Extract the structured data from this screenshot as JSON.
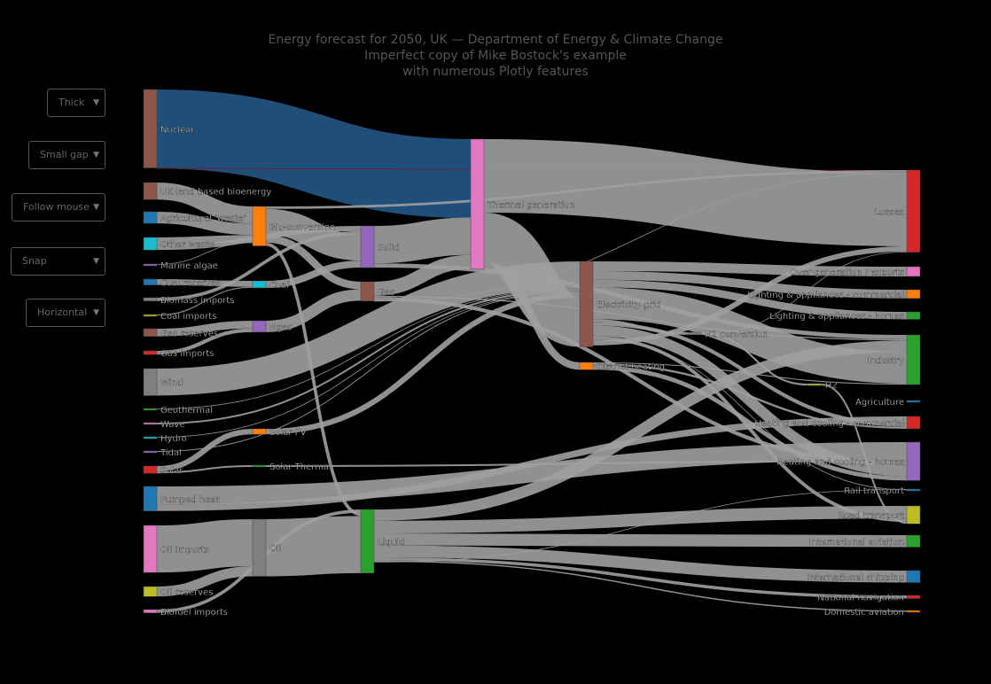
{
  "title": {
    "line1": "Energy forecast for 2050, UK — Department of Energy & Climate Change",
    "line2": "Imperfect copy of Mike Bostock's example",
    "line3": "with numerous Plotly features"
  },
  "controls": [
    {
      "label": "Thick"
    },
    {
      "label": "Small gap"
    },
    {
      "label": "Follow mouse"
    },
    {
      "label": "Snap"
    },
    {
      "label": "Horizontal"
    }
  ],
  "chart_data": {
    "type": "sankey",
    "link_color": "#a0a0a0",
    "nodes": [
      {
        "id": "nuclear",
        "label": "Nuclear",
        "color": "#8c564b"
      },
      {
        "id": "uk_bio",
        "label": "UK land based bioenergy",
        "color": "#8c564b"
      },
      {
        "id": "agri_waste",
        "label": "Agricultural 'waste'",
        "color": "#1f77b4"
      },
      {
        "id": "other_waste",
        "label": "Other waste",
        "color": "#17becf"
      },
      {
        "id": "marine_algae",
        "label": "Marine algae",
        "color": "#9467bd"
      },
      {
        "id": "coal_reserves",
        "label": "Coal reserves",
        "color": "#1f77b4"
      },
      {
        "id": "biomass_imports",
        "label": "Biomass imports",
        "color": "#7f7f7f"
      },
      {
        "id": "coal_imports",
        "label": "Coal imports",
        "color": "#bcbd22"
      },
      {
        "id": "gas_reserves",
        "label": "Gas reserves",
        "color": "#8c564b"
      },
      {
        "id": "gas_imports",
        "label": "Gas imports",
        "color": "#d62728"
      },
      {
        "id": "wind",
        "label": "Wind",
        "color": "#7f7f7f"
      },
      {
        "id": "geothermal",
        "label": "Geothermal",
        "color": "#2ca02c"
      },
      {
        "id": "wave",
        "label": "Wave",
        "color": "#e377c2"
      },
      {
        "id": "hydro",
        "label": "Hydro",
        "color": "#17becf"
      },
      {
        "id": "tidal",
        "label": "Tidal",
        "color": "#9467bd"
      },
      {
        "id": "solar",
        "label": "Solar",
        "color": "#d62728"
      },
      {
        "id": "pumped_heat",
        "label": "Pumped heat",
        "color": "#1f77b4"
      },
      {
        "id": "oil_imports",
        "label": "Oil imports",
        "color": "#e377c2"
      },
      {
        "id": "oil_reserves",
        "label": "Oil reserves",
        "color": "#bcbd22"
      },
      {
        "id": "biofuel_imports",
        "label": "Biofuel imports",
        "color": "#e377c2"
      },
      {
        "id": "bio_conversion",
        "label": "Bio-conversion",
        "color": "#ff7f0e"
      },
      {
        "id": "coal",
        "label": "Coal",
        "color": "#17becf"
      },
      {
        "id": "ngas",
        "label": "Ngas",
        "color": "#9467bd"
      },
      {
        "id": "solar_pv",
        "label": "Solar PV",
        "color": "#ff7f0e"
      },
      {
        "id": "solar_thermal",
        "label": "Solar Thermal",
        "color": "#2ca02c"
      },
      {
        "id": "oil",
        "label": "Oil",
        "color": "#7f7f7f"
      },
      {
        "id": "solid",
        "label": "Solid",
        "color": "#9467bd"
      },
      {
        "id": "gas",
        "label": "Gas",
        "color": "#8c564b"
      },
      {
        "id": "liquid",
        "label": "Liquid",
        "color": "#2ca02c"
      },
      {
        "id": "thermal_gen",
        "label": "Thermal generation",
        "color": "#e377c2"
      },
      {
        "id": "elec_grid",
        "label": "Electricity grid",
        "color": "#8c564b"
      },
      {
        "id": "district_heating",
        "label": "District heating",
        "color": "#ff7f0e"
      },
      {
        "id": "h2_conversion",
        "label": "H2 conversion",
        "color": "#7f7f7f"
      },
      {
        "id": "h2",
        "label": "H2",
        "color": "#bcbd22"
      },
      {
        "id": "losses",
        "label": "Losses",
        "color": "#d62728"
      },
      {
        "id": "over_gen",
        "label": "Over generation / exports",
        "color": "#e377c2"
      },
      {
        "id": "lighting_comm",
        "label": "Lighting & appliances - commercial",
        "color": "#ff7f0e"
      },
      {
        "id": "lighting_homes",
        "label": "Lighting & appliances - homes",
        "color": "#2ca02c"
      },
      {
        "id": "industry",
        "label": "Industry",
        "color": "#2ca02c"
      },
      {
        "id": "agriculture",
        "label": "Agriculture",
        "color": "#1f77b4"
      },
      {
        "id": "heat_comm",
        "label": "Heating and cooling - commercial",
        "color": "#d62728"
      },
      {
        "id": "heat_homes",
        "label": "Heating and cooling - homes",
        "color": "#9467bd"
      },
      {
        "id": "rail",
        "label": "Rail transport",
        "color": "#1f77b4"
      },
      {
        "id": "road",
        "label": "Road transport",
        "color": "#bcbd22"
      },
      {
        "id": "intl_aviation",
        "label": "International aviation",
        "color": "#2ca02c"
      },
      {
        "id": "intl_shipping",
        "label": "International shipping",
        "color": "#1f77b4"
      },
      {
        "id": "national_nav",
        "label": "National navigation",
        "color": "#d62728"
      },
      {
        "id": "domestic_aviation",
        "label": "Domestic aviation",
        "color": "#ff7f0e"
      }
    ],
    "links": [
      {
        "source": "nuclear",
        "target": "thermal_gen",
        "value": 839,
        "color": "#1f4e79"
      },
      {
        "source": "nuclear",
        "target": "thermal_gen",
        "value": 0,
        "color": "#1f4e79"
      },
      {
        "source": "nuclear",
        "target": "losses",
        "value": 0,
        "color": "#7a1420"
      },
      {
        "source": "uk_bio",
        "target": "bio_conversion",
        "value": 182
      },
      {
        "source": "agri_waste",
        "target": "bio_conversion",
        "value": 124
      },
      {
        "source": "other_waste",
        "target": "bio_conversion",
        "value": 78
      },
      {
        "source": "other_waste",
        "target": "solid",
        "value": 56
      },
      {
        "source": "marine_algae",
        "target": "bio_conversion",
        "value": 4
      },
      {
        "source": "coal_reserves",
        "target": "coal",
        "value": 63
      },
      {
        "source": "biomass_imports",
        "target": "solid",
        "value": 35
      },
      {
        "source": "coal_imports",
        "target": "coal",
        "value": 11
      },
      {
        "source": "gas_reserves",
        "target": "ngas",
        "value": 82
      },
      {
        "source": "gas_imports",
        "target": "ngas",
        "value": 40
      },
      {
        "source": "wind",
        "target": "elec_grid",
        "value": 289
      },
      {
        "source": "geothermal",
        "target": "elec_grid",
        "value": 7
      },
      {
        "source": "wave",
        "target": "elec_grid",
        "value": 19
      },
      {
        "source": "hydro",
        "target": "elec_grid",
        "value": 6
      },
      {
        "source": "tidal",
        "target": "elec_grid",
        "value": 9
      },
      {
        "source": "solar",
        "target": "solar_pv",
        "value": 59
      },
      {
        "source": "solar",
        "target": "solar_thermal",
        "value": 19
      },
      {
        "source": "pumped_heat",
        "target": "heat_homes",
        "value": 193
      },
      {
        "source": "pumped_heat",
        "target": "heat_comm",
        "value": 70
      },
      {
        "source": "oil_imports",
        "target": "oil",
        "value": 504
      },
      {
        "source": "oil_reserves",
        "target": "oil",
        "value": 107
      },
      {
        "source": "biofuel_imports",
        "target": "liquid",
        "value": 35
      },
      {
        "source": "bio_conversion",
        "target": "losses",
        "value": 26
      },
      {
        "source": "bio_conversion",
        "target": "solid",
        "value": 280
      },
      {
        "source": "bio_conversion",
        "target": "gas",
        "value": 81
      },
      {
        "source": "bio_conversion",
        "target": "liquid",
        "value": 35
      },
      {
        "source": "coal",
        "target": "solid",
        "value": 75
      },
      {
        "source": "ngas",
        "target": "gas",
        "value": 122
      },
      {
        "source": "solar_pv",
        "target": "elec_grid",
        "value": 59
      },
      {
        "source": "solar_thermal",
        "target": "heat_homes",
        "value": 19
      },
      {
        "source": "oil",
        "target": "liquid",
        "value": 611
      },
      {
        "source": "solid",
        "target": "thermal_gen",
        "value": 400
      },
      {
        "source": "solid",
        "target": "industry",
        "value": 46
      },
      {
        "source": "gas",
        "target": "thermal_gen",
        "value": 151
      },
      {
        "source": "gas",
        "target": "industry",
        "value": 13
      },
      {
        "source": "gas",
        "target": "heat_homes",
        "value": 40
      },
      {
        "source": "gas",
        "target": "losses",
        "value": 2
      },
      {
        "source": "liquid",
        "target": "industry",
        "value": 121
      },
      {
        "source": "liquid",
        "target": "road",
        "value": 135
      },
      {
        "source": "liquid",
        "target": "intl_aviation",
        "value": 128
      },
      {
        "source": "liquid",
        "target": "intl_shipping",
        "value": 128
      },
      {
        "source": "liquid",
        "target": "national_nav",
        "value": 33
      },
      {
        "source": "liquid",
        "target": "domestic_aviation",
        "value": 14
      },
      {
        "source": "liquid",
        "target": "rail",
        "value": 4
      },
      {
        "source": "thermal_gen",
        "target": "losses",
        "value": 787
      },
      {
        "source": "thermal_gen",
        "target": "elec_grid",
        "value": 525
      },
      {
        "source": "thermal_gen",
        "target": "district_heating",
        "value": 79
      },
      {
        "source": "elec_grid",
        "target": "over_gen",
        "value": 104
      },
      {
        "source": "elec_grid",
        "target": "lighting_comm",
        "value": 93
      },
      {
        "source": "elec_grid",
        "target": "lighting_homes",
        "value": 80
      },
      {
        "source": "elec_grid",
        "target": "industry",
        "value": 342
      },
      {
        "source": "elec_grid",
        "target": "h2_conversion",
        "value": 27
      },
      {
        "source": "elec_grid",
        "target": "heat_comm",
        "value": 40
      },
      {
        "source": "elec_grid",
        "target": "heat_homes",
        "value": 113
      },
      {
        "source": "elec_grid",
        "target": "road",
        "value": 37
      },
      {
        "source": "elec_grid",
        "target": "rail",
        "value": 7
      },
      {
        "source": "elec_grid",
        "target": "losses",
        "value": 56
      },
      {
        "source": "district_heating",
        "target": "industry",
        "value": 10
      },
      {
        "source": "district_heating",
        "target": "heat_comm",
        "value": 22
      },
      {
        "source": "district_heating",
        "target": "heat_homes",
        "value": 46
      },
      {
        "source": "h2_conversion",
        "target": "h2",
        "value": 20
      },
      {
        "source": "h2_conversion",
        "target": "losses",
        "value": 7
      },
      {
        "source": "h2",
        "target": "road",
        "value": 20
      }
    ]
  }
}
